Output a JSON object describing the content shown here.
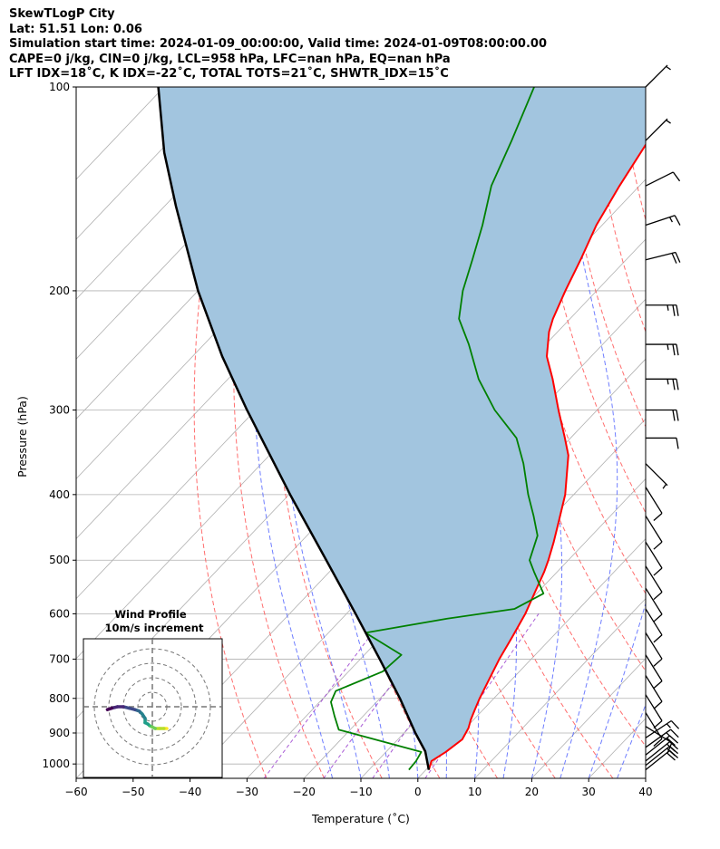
{
  "header": {
    "line1": "SkewTLogP City",
    "line2": "Lat: 51.51   Lon: 0.06",
    "line3": "Simulation start time: 2024-01-09_00:00:00, Valid time: 2024-01-09T08:00:00.00",
    "line4": "CAPE=0 j/kg, CIN=0 j/kg, LCL=958 hPa, LFC=nan hPa, EQ=nan hPa",
    "line5": "LFT IDX=18˚C, K IDX=-22˚C, TOTAL TOTS=21˚C, SHWTR_IDX=15˚C"
  },
  "chart_data": {
    "type": "line",
    "xlabel": "Temperature (˚C)",
    "ylabel": "Pressure (hPa)",
    "xlim": [
      -60,
      40
    ],
    "ylim": [
      1050,
      100
    ],
    "y_scale": "log",
    "skew": true,
    "x_ticks": [
      -60,
      -50,
      -40,
      -30,
      -20,
      -10,
      0,
      10,
      20,
      30,
      40
    ],
    "x_tick_labels": [
      "−60",
      "−50",
      "−40",
      "−30",
      "−20",
      "−10",
      "0",
      "10",
      "20",
      "30",
      "40"
    ],
    "y_ticks": [
      1000,
      900,
      800,
      700,
      600,
      500,
      400,
      300,
      200,
      100
    ],
    "y_tick_labels": [
      "1000",
      "900",
      "800",
      "700",
      "600",
      "500",
      "400",
      "300",
      "200",
      "100"
    ],
    "grid": true,
    "colors": {
      "temperature": "#ff0000",
      "dewpoint": "#008000",
      "parcel": "#000000",
      "fill": "#a2c5df",
      "dry_adiabat": "#ff5555",
      "moist_adiabat": "#5566ff",
      "isotherm": "#b0b0b0",
      "mixing_ratio": "#9333cc"
    },
    "series": [
      {
        "key": "temperature",
        "pressure": [
          1020,
          990,
          960,
          920,
          885,
          860,
          830,
          800,
          750,
          700,
          650,
          600,
          560,
          520,
          500,
          470,
          440,
          400,
          350,
          330,
          300,
          270,
          250,
          230,
          220,
          200,
          180,
          160,
          140,
          120,
          100
        ],
        "temp": [
          0.5,
          -0.5,
          0.5,
          1.3,
          0.5,
          -0.5,
          -1.5,
          -2.5,
          -4.0,
          -5.6,
          -7.0,
          -8.6,
          -10.4,
          -12.3,
          -13.5,
          -15.6,
          -18.0,
          -21.5,
          -27.5,
          -31.0,
          -36.8,
          -43.0,
          -47.8,
          -51.5,
          -53.0,
          -55.5,
          -58.0,
          -61.0,
          -63.5,
          -66.0,
          -69.0
        ]
      },
      {
        "key": "dewpoint",
        "pressure": [
          1020,
          990,
          960,
          890,
          850,
          810,
          780,
          730,
          690,
          640,
          610,
          590,
          560,
          520,
          500,
          460,
          430,
          400,
          360,
          330,
          300,
          270,
          240,
          220,
          200,
          180,
          160,
          140,
          120,
          100
        ],
        "temp": [
          -3.0,
          -3.2,
          -3.8,
          -22.0,
          -25.0,
          -28.0,
          -29.0,
          -24.0,
          -23.5,
          -33.5,
          -21.5,
          -11.3,
          -8.8,
          -14.1,
          -16.8,
          -19.5,
          -23.5,
          -28.0,
          -34.0,
          -39.5,
          -48.0,
          -56.0,
          -63.5,
          -69.5,
          -73.5,
          -77.0,
          -81.0,
          -86.0,
          -90.0,
          -95.0
        ]
      },
      {
        "key": "parcel",
        "pressure": [
          1020,
          958,
          900,
          800,
          700,
          600,
          500,
          400,
          300,
          250,
          200,
          150,
          125,
          100
        ],
        "temp": [
          0.5,
          -3.2,
          -8.0,
          -16.5,
          -26.6,
          -38.4,
          -52.5,
          -69.8,
          -91.5,
          -104.8,
          -120.0,
          -138.0,
          -149.0,
          -161.0
        ]
      }
    ],
    "shaded_region": "between parcel and temperature",
    "wind_profile_inset": {
      "title": "Wind Profile",
      "subtitle": "10m/s increment",
      "ring_count": 4,
      "u": [
        10,
        8,
        5,
        2,
        0,
        -2,
        -3,
        -5,
        -5,
        -7,
        -9,
        -12,
        -16,
        -20,
        -24,
        -28,
        -31
      ],
      "v": [
        -15,
        -15,
        -15,
        -15,
        -14,
        -13,
        -12,
        -11,
        -8,
        -5,
        -3,
        -2,
        -1,
        0,
        0,
        -1,
        -2
      ]
    },
    "wind_barbs": {
      "pressure": [
        1020,
        1005,
        990,
        970,
        945,
        915,
        880,
        840,
        790,
        740,
        690,
        640,
        590,
        550,
        510,
        470,
        430,
        390,
        360,
        330,
        300,
        270,
        240,
        210,
        180,
        160,
        140,
        120,
        100
      ],
      "u": [
        15,
        15,
        15,
        15,
        14,
        12,
        8,
        5,
        5,
        5,
        5,
        5,
        5,
        5,
        5,
        5,
        5,
        5,
        5,
        10,
        20,
        25,
        25,
        25,
        20,
        15,
        10,
        5,
        5
      ],
      "v": [
        12,
        12,
        12,
        12,
        10,
        8,
        -5,
        -8,
        -8,
        -8,
        -8,
        -8,
        -8,
        -8,
        -8,
        -8,
        -8,
        -8,
        -5,
        0,
        0,
        0,
        0,
        0,
        5,
        5,
        5,
        5,
        5
      ]
    }
  }
}
